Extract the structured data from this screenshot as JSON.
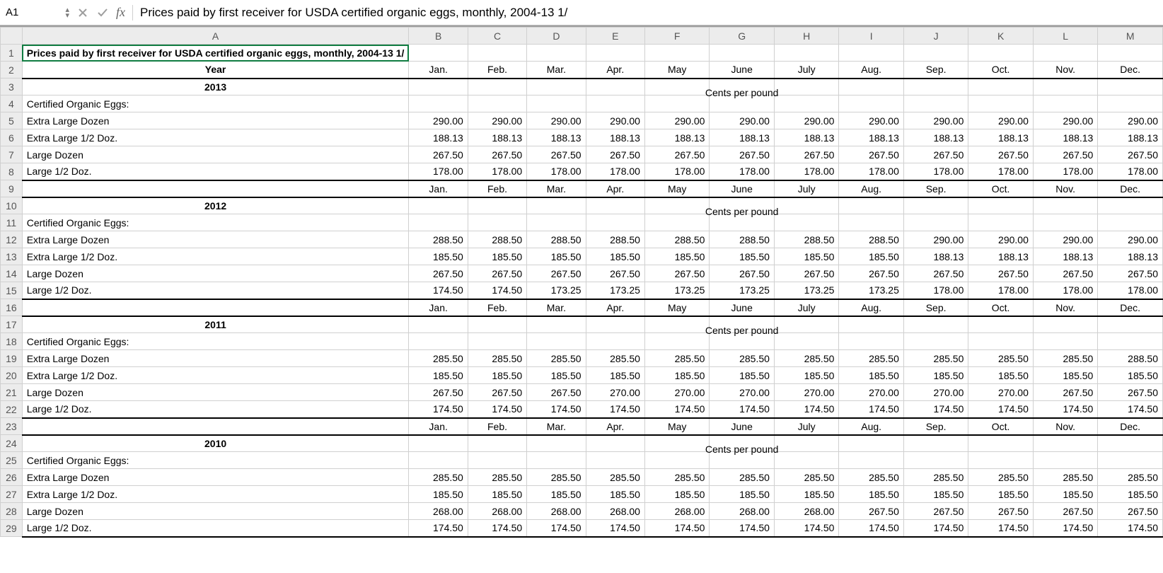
{
  "formula_bar": {
    "cell_ref": "A1",
    "fx_label": "fx",
    "formula_text": "Prices paid by first receiver for USDA certified organic eggs, monthly, 2004-13 1/"
  },
  "columns": [
    "A",
    "B",
    "C",
    "D",
    "E",
    "F",
    "G",
    "H",
    "I",
    "J",
    "K",
    "L",
    "M"
  ],
  "col_classes": [
    "cA",
    "cB",
    "cC",
    "cD",
    "cE",
    "cF",
    "cG",
    "cH",
    "cI",
    "cJ",
    "cK",
    "cL",
    "cM"
  ],
  "months": [
    "Jan.",
    "Feb.",
    "Mar.",
    "Apr.",
    "May",
    "June",
    "July",
    "Aug.",
    "Sep.",
    "Oct.",
    "Nov.",
    "Dec."
  ],
  "title": "Prices paid by first receiver for USDA certified organic eggs, monthly, 2004-13 1/",
  "labels": {
    "year": "Year",
    "unit": "Cents per pound",
    "category": "Certified Organic Eggs:",
    "xl_doz": "Extra Large Dozen",
    "xl_half": "Extra Large 1/2 Doz.",
    "lg_doz": "Large Dozen",
    "lg_half": "Large 1/2 Doz."
  },
  "blocks": [
    {
      "year": "2013",
      "xl_doz": [
        "290.00",
        "290.00",
        "290.00",
        "290.00",
        "290.00",
        "290.00",
        "290.00",
        "290.00",
        "290.00",
        "290.00",
        "290.00",
        "290.00"
      ],
      "xl_half": [
        "188.13",
        "188.13",
        "188.13",
        "188.13",
        "188.13",
        "188.13",
        "188.13",
        "188.13",
        "188.13",
        "188.13",
        "188.13",
        "188.13"
      ],
      "lg_doz": [
        "267.50",
        "267.50",
        "267.50",
        "267.50",
        "267.50",
        "267.50",
        "267.50",
        "267.50",
        "267.50",
        "267.50",
        "267.50",
        "267.50"
      ],
      "lg_half": [
        "178.00",
        "178.00",
        "178.00",
        "178.00",
        "178.00",
        "178.00",
        "178.00",
        "178.00",
        "178.00",
        "178.00",
        "178.00",
        "178.00"
      ]
    },
    {
      "year": "2012",
      "xl_doz": [
        "288.50",
        "288.50",
        "288.50",
        "288.50",
        "288.50",
        "288.50",
        "288.50",
        "288.50",
        "290.00",
        "290.00",
        "290.00",
        "290.00"
      ],
      "xl_half": [
        "185.50",
        "185.50",
        "185.50",
        "185.50",
        "185.50",
        "185.50",
        "185.50",
        "185.50",
        "188.13",
        "188.13",
        "188.13",
        "188.13"
      ],
      "lg_doz": [
        "267.50",
        "267.50",
        "267.50",
        "267.50",
        "267.50",
        "267.50",
        "267.50",
        "267.50",
        "267.50",
        "267.50",
        "267.50",
        "267.50"
      ],
      "lg_half": [
        "174.50",
        "174.50",
        "173.25",
        "173.25",
        "173.25",
        "173.25",
        "173.25",
        "173.25",
        "178.00",
        "178.00",
        "178.00",
        "178.00"
      ]
    },
    {
      "year": "2011",
      "xl_doz": [
        "285.50",
        "285.50",
        "285.50",
        "285.50",
        "285.50",
        "285.50",
        "285.50",
        "285.50",
        "285.50",
        "285.50",
        "285.50",
        "288.50"
      ],
      "xl_half": [
        "185.50",
        "185.50",
        "185.50",
        "185.50",
        "185.50",
        "185.50",
        "185.50",
        "185.50",
        "185.50",
        "185.50",
        "185.50",
        "185.50"
      ],
      "lg_doz": [
        "267.50",
        "267.50",
        "267.50",
        "270.00",
        "270.00",
        "270.00",
        "270.00",
        "270.00",
        "270.00",
        "270.00",
        "267.50",
        "267.50"
      ],
      "lg_half": [
        "174.50",
        "174.50",
        "174.50",
        "174.50",
        "174.50",
        "174.50",
        "174.50",
        "174.50",
        "174.50",
        "174.50",
        "174.50",
        "174.50"
      ]
    },
    {
      "year": "2010",
      "xl_doz": [
        "285.50",
        "285.50",
        "285.50",
        "285.50",
        "285.50",
        "285.50",
        "285.50",
        "285.50",
        "285.50",
        "285.50",
        "285.50",
        "285.50"
      ],
      "xl_half": [
        "185.50",
        "185.50",
        "185.50",
        "185.50",
        "185.50",
        "185.50",
        "185.50",
        "185.50",
        "185.50",
        "185.50",
        "185.50",
        "185.50"
      ],
      "lg_doz": [
        "268.00",
        "268.00",
        "268.00",
        "268.00",
        "268.00",
        "268.00",
        "268.00",
        "267.50",
        "267.50",
        "267.50",
        "267.50",
        "267.50"
      ],
      "lg_half": [
        "174.50",
        "174.50",
        "174.50",
        "174.50",
        "174.50",
        "174.50",
        "174.50",
        "174.50",
        "174.50",
        "174.50",
        "174.50",
        "174.50"
      ]
    }
  ],
  "visible_rows": 29,
  "colors": {
    "grid": "#d0d0d0",
    "header_bg": "#ececec",
    "selection": "#107c41",
    "heavy_border": "#000000"
  }
}
